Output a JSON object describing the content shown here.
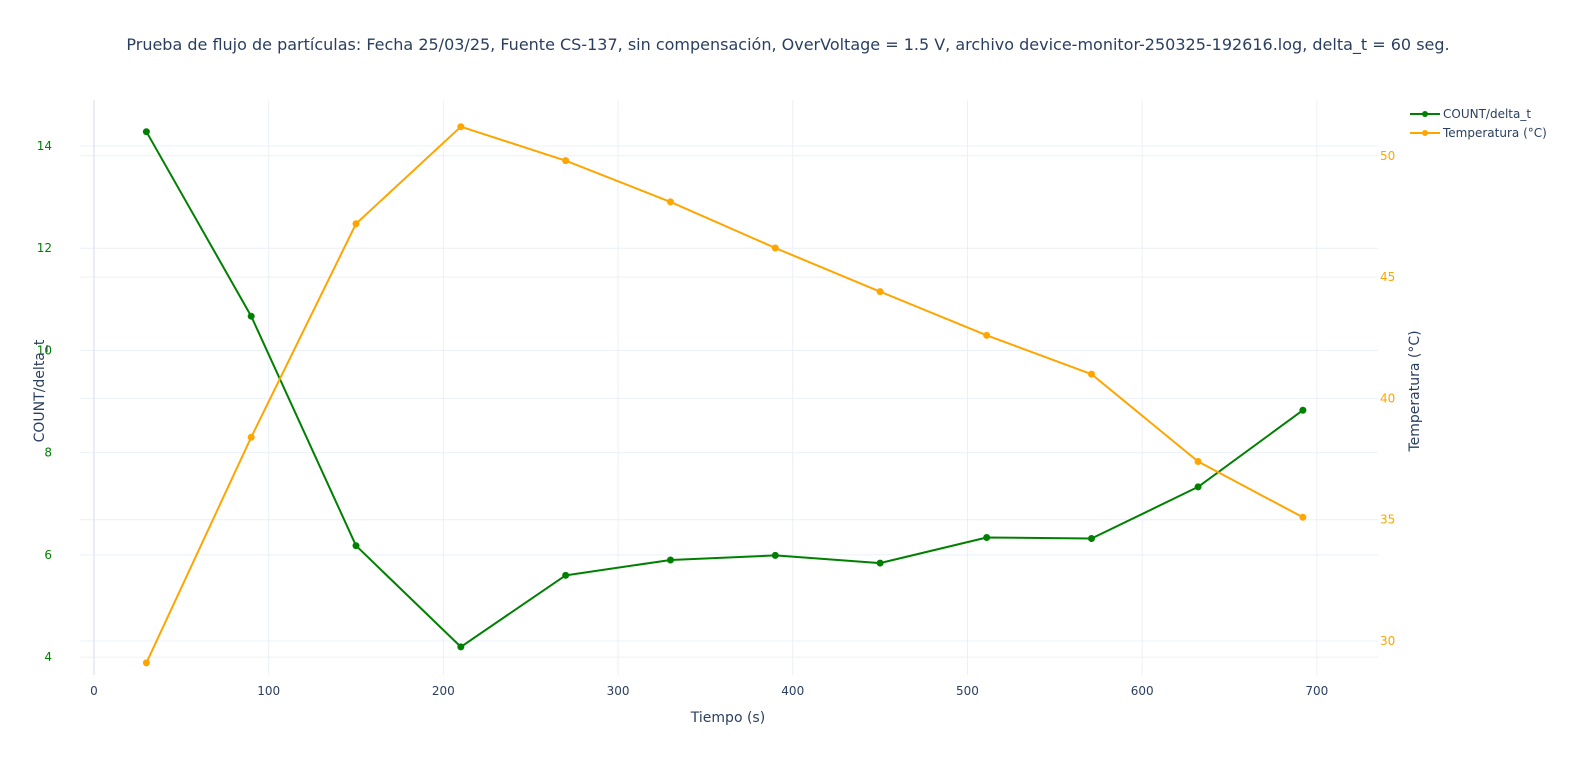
{
  "chart_data": {
    "type": "line",
    "title": "Prueba de flujo de partículas: Fecha 25/03/25, Fuente CS-137, sin compensación, OverVoltage = 1.5 V, archivo device-monitor-250325-192616.log, delta_t = 60 seg.",
    "xlabel": "Tiempo (s)",
    "ylabel": "COUNT/delta_t",
    "y2label": "Temperatura (°C)",
    "xlim": [
      -8,
      735
    ],
    "ylim": [
      3.65,
      14.9
    ],
    "y2lim": [
      28.6,
      52.3
    ],
    "x_ticks": [
      0,
      100,
      200,
      300,
      400,
      500,
      600,
      700
    ],
    "y_ticks": [
      4,
      6,
      8,
      10,
      12,
      14
    ],
    "y2_ticks": [
      30,
      35,
      40,
      45,
      50
    ],
    "grid": true,
    "legend_position": "top-right",
    "x": [
      30,
      90,
      150,
      210,
      270,
      330,
      390,
      450,
      511,
      571,
      632,
      692
    ],
    "series": [
      {
        "name": "COUNT/delta_t",
        "axis": "y",
        "color": "#008000",
        "values": [
          14.28,
          10.67,
          6.18,
          4.2,
          5.6,
          5.9,
          5.99,
          5.84,
          6.34,
          6.32,
          7.33,
          8.83
        ]
      },
      {
        "name": "Temperatura (°C)",
        "axis": "y2",
        "color": "#FFA500",
        "values": [
          29.1,
          38.4,
          47.2,
          51.2,
          49.8,
          48.1,
          46.2,
          44.4,
          42.6,
          41.0,
          37.4,
          35.1
        ]
      }
    ]
  },
  "colors": {
    "left_axis": "#008000",
    "right_axis": "#FFA500",
    "text": "#2a3f5f",
    "grid": "#ebf0f8"
  }
}
